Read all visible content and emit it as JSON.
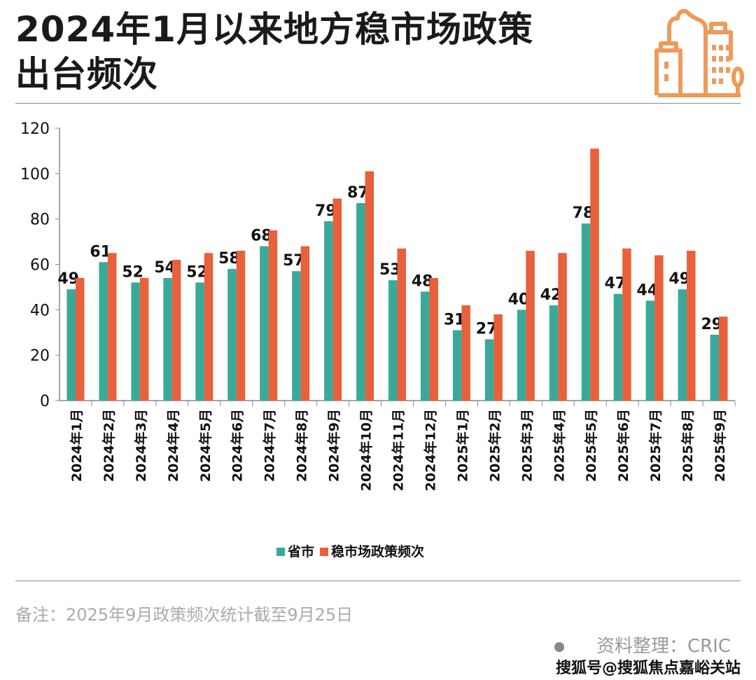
{
  "header": {
    "title_line1": "2024年1月以来地方稳市场政策",
    "title_line2": "出台频次"
  },
  "logo": {
    "icon": "city-buildings-icon",
    "color": "#ef9a5a"
  },
  "chart_data": {
    "type": "bar",
    "title": "",
    "xlabel": "",
    "ylabel": "",
    "ylim": [
      0,
      120
    ],
    "yticks": [
      0,
      20,
      40,
      60,
      80,
      100,
      120
    ],
    "grid": false,
    "legend_position": "bottom",
    "categories": [
      "2024年1月",
      "2024年2月",
      "2024年3月",
      "2024年4月",
      "2024年5月",
      "2024年6月",
      "2024年7月",
      "2024年8月",
      "2024年9月",
      "2024年10月",
      "2024年11月",
      "2024年12月",
      "2025年1月",
      "2025年2月",
      "2025年3月",
      "2025年4月",
      "2025年5月",
      "2025年6月",
      "2025年7月",
      "2025年8月",
      "2025年9月"
    ],
    "series": [
      {
        "name": "省市",
        "color": "#3aa99a",
        "values": [
          49,
          61,
          52,
          54,
          52,
          58,
          68,
          57,
          79,
          87,
          53,
          48,
          31,
          27,
          40,
          42,
          78,
          47,
          44,
          49,
          29
        ],
        "data_labels": true
      },
      {
        "name": "稳市场政策频次",
        "color": "#e8603c",
        "values": [
          54,
          65,
          54,
          62,
          65,
          66,
          75,
          68,
          89,
          101,
          67,
          54,
          42,
          38,
          66,
          65,
          111,
          67,
          64,
          66,
          37
        ],
        "data_labels": false
      }
    ]
  },
  "footer": {
    "note": "备注：2025年9月政策频次统计截至9月25日",
    "source": "资料整理：CRIC",
    "watermark": "搜狐号@搜狐焦点嘉峪关站"
  }
}
